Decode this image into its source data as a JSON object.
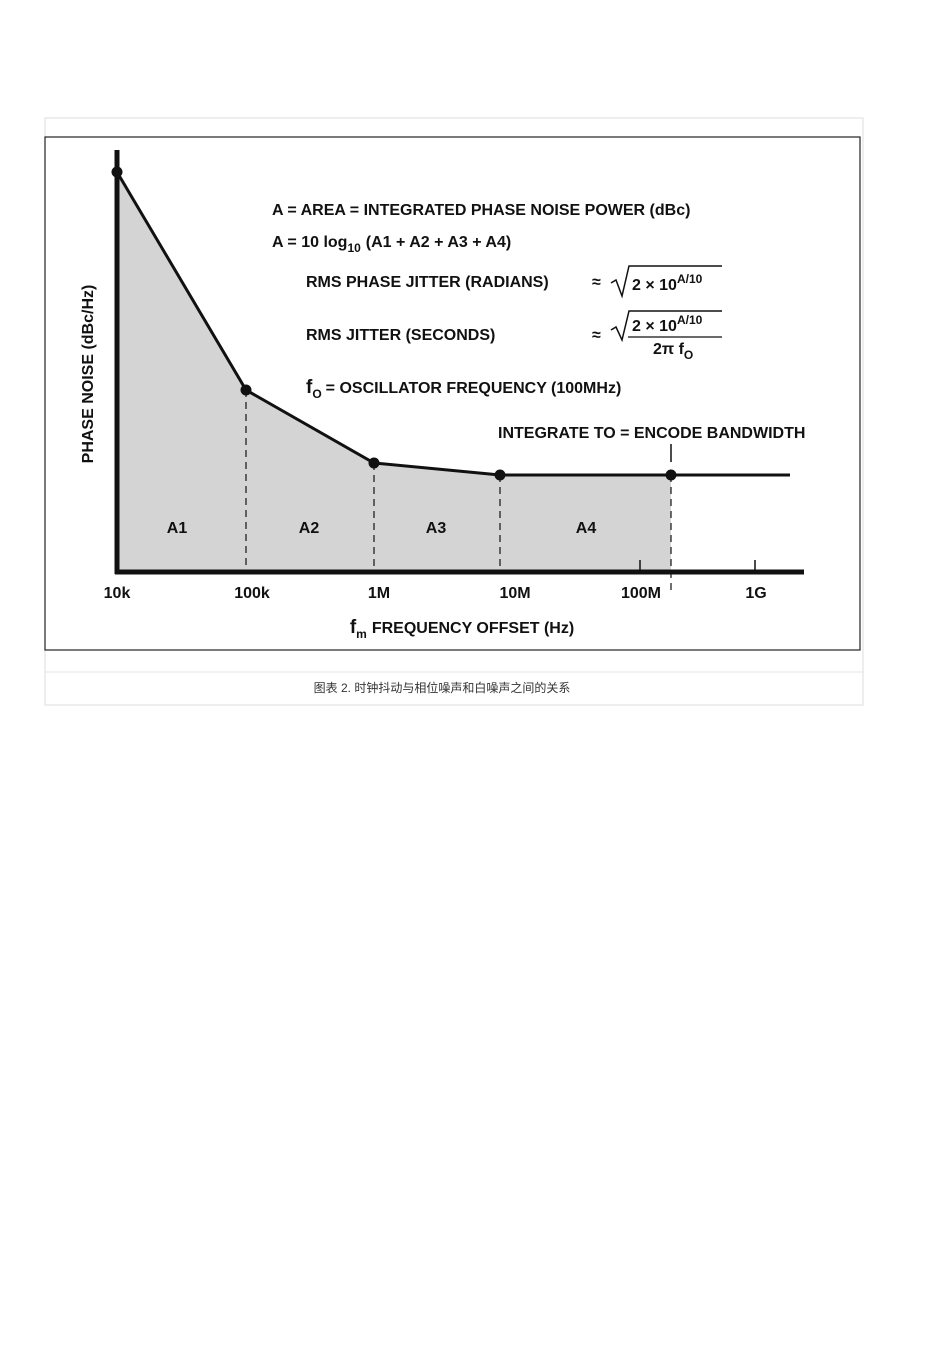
{
  "figure": {
    "formula": {
      "line1": "A = AREA = INTEGRATED PHASE NOISE POWER (dBc)",
      "line2": {
        "prefix": "A = 10 log",
        "subscript": "10",
        "suffix": "(A1 + A2 + A3 + A4)"
      },
      "rms_phase_jitter": {
        "label": "RMS PHASE JITTER (RADIANS)",
        "approx": "≈",
        "radicand": "2 × 10",
        "exponent": "A/10"
      },
      "rms_jitter": {
        "label": "RMS JITTER (SECONDS)",
        "approx": "≈",
        "radicand": "2 × 10",
        "exponent": "A/10",
        "denominator": "2π f",
        "denominator_subscript": "O"
      },
      "oscillator": {
        "symbol": "f",
        "subscript": "O",
        "text": "= OSCILLATOR FREQUENCY (100MHz)"
      }
    },
    "annotation": "INTEGRATE TO = ENCODE BANDWIDTH",
    "regions": [
      "A1",
      "A2",
      "A3",
      "A4"
    ],
    "x_ticks": [
      "10k",
      "100k",
      "1M",
      "10M",
      "100M",
      "1G"
    ],
    "y_axis_label": "PHASE NOISE (dBc/Hz)",
    "x_axis_label": {
      "symbol": "f",
      "subscript": "m",
      "text": "FREQUENCY OFFSET (Hz)"
    }
  },
  "caption": "图表 2. 时钟抖动与相位噪声和白噪声之间的关系"
}
